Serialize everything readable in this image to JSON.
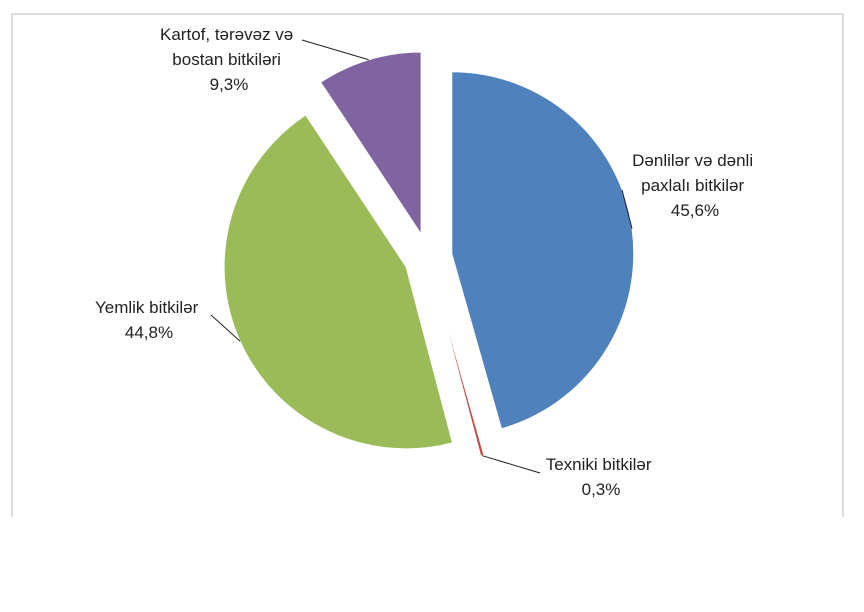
{
  "chart_data": {
    "type": "pie",
    "exploded": true,
    "slices": [
      {
        "label_lines": [
          "Dənlilər və dənli",
          "paxlalı  bitkilər"
        ],
        "value": 45.6,
        "value_label": "45,6%",
        "color": "#4f81bd"
      },
      {
        "label_lines": [
          "Texniki  bitkilər"
        ],
        "value": 0.3,
        "value_label": "0,3%",
        "color": "#c0504d"
      },
      {
        "label_lines": [
          "Yemlik  bitkilər"
        ],
        "value": 44.8,
        "value_label": "44,8%",
        "color": "#9bbb59"
      },
      {
        "label_lines": [
          "Kartof, tərəvəz və",
          "bostan bitkiləri"
        ],
        "value": 9.3,
        "value_label": "9,3%",
        "color": "#8064a2"
      }
    ]
  }
}
